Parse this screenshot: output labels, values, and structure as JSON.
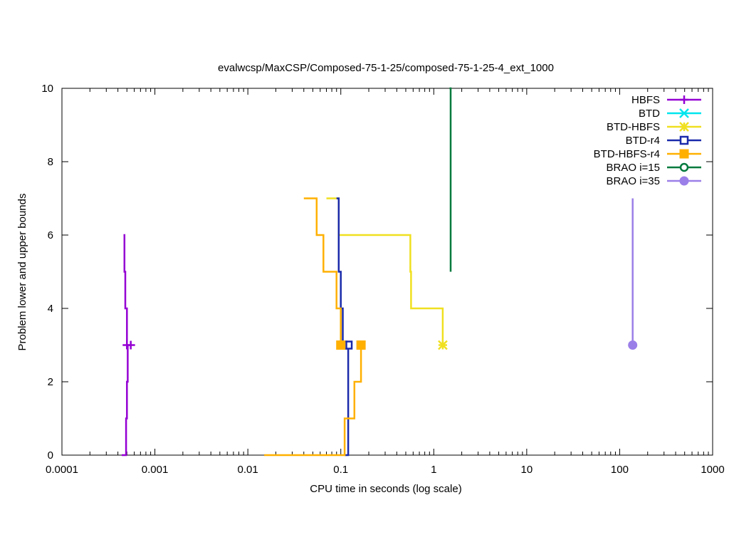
{
  "chart_data": {
    "type": "line",
    "title": "evalwcsp/MaxCSP/Composed-75-1-25/composed-75-1-25-4_ext_1000",
    "xlabel": "CPU time in seconds (log scale)",
    "ylabel": "Problem lower and upper bounds",
    "x_scale": "log",
    "xlim": [
      0.0001,
      1000
    ],
    "ylim": [
      0,
      10
    ],
    "x_ticks": [
      0.0001,
      0.001,
      0.01,
      0.1,
      1,
      10,
      100,
      1000
    ],
    "x_tick_labels": [
      "0.0001",
      "0.001",
      "0.01",
      "0.1",
      "1",
      "10",
      "100",
      "1000"
    ],
    "y_ticks": [
      0,
      2,
      4,
      6,
      8,
      10
    ],
    "y_tick_labels": [
      "0",
      "2",
      "4",
      "6",
      "8",
      "10"
    ],
    "grid": false,
    "legend_position": "top-right",
    "series": [
      {
        "name": "HBFS",
        "color": "#9400d3",
        "marker": "plus",
        "upper": [
          [
            0.00046,
            6
          ],
          [
            0.00047,
            5
          ],
          [
            0.00048,
            4
          ],
          [
            0.0005,
            3
          ]
        ],
        "lower": [
          [
            0.00044,
            0
          ],
          [
            0.00049,
            1
          ],
          [
            0.0005,
            2
          ],
          [
            0.00051,
            3
          ]
        ],
        "final": [
          0.00055,
          3
        ]
      },
      {
        "name": "BTD",
        "color": "#00e5ee",
        "marker": "x",
        "upper": [],
        "lower": [],
        "final": null
      },
      {
        "name": "BTD-HBFS",
        "color": "#f0e020",
        "marker": "star",
        "upper": [
          [
            0.07,
            7
          ],
          [
            0.095,
            6
          ],
          [
            0.56,
            5
          ],
          [
            0.57,
            4
          ],
          [
            1.25,
            3
          ]
        ],
        "lower": [],
        "final": [
          1.25,
          3
        ]
      },
      {
        "name": "BTD-r4",
        "color": "#1a2aaa",
        "marker": "open-square",
        "upper": [
          [
            0.09,
            7
          ],
          [
            0.095,
            5
          ],
          [
            0.1,
            4
          ],
          [
            0.105,
            3
          ]
        ],
        "lower": [
          [
            0.11,
            0
          ],
          [
            0.12,
            3
          ]
        ],
        "final": [
          0.12,
          3
        ]
      },
      {
        "name": "BTD-HBFS-r4",
        "color": "#ffb000",
        "marker": "filled-square",
        "upper": [
          [
            0.04,
            7
          ],
          [
            0.055,
            6
          ],
          [
            0.065,
            5
          ],
          [
            0.09,
            4
          ],
          [
            0.1,
            3
          ]
        ],
        "lower": [
          [
            0.015,
            0
          ],
          [
            0.11,
            1
          ],
          [
            0.14,
            2
          ],
          [
            0.165,
            3
          ]
        ],
        "final": [
          0.165,
          3
        ]
      },
      {
        "name": "BRAO i=15",
        "color": "#007a3d",
        "marker": "open-circle",
        "upper": [
          [
            1.48,
            10
          ],
          [
            1.52,
            6
          ],
          [
            1.52,
            5
          ]
        ],
        "lower": [],
        "final": null
      },
      {
        "name": "BRAO i=35",
        "color": "#9b7fe8",
        "marker": "filled-circle",
        "upper": [
          [
            138,
            7
          ],
          [
            138,
            3
          ]
        ],
        "lower": [],
        "final": [
          138,
          3
        ]
      }
    ]
  }
}
